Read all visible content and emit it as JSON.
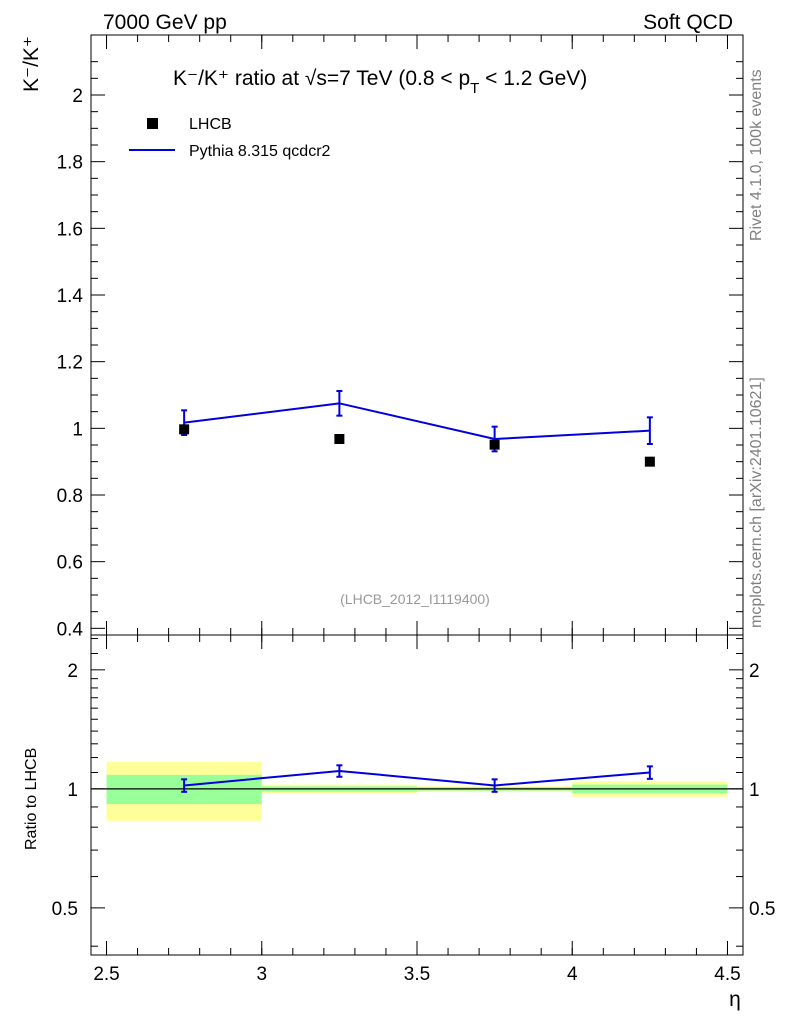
{
  "header": {
    "left": "7000 GeV pp",
    "right": "Soft QCD"
  },
  "side_text": {
    "rivet": "Rivet 4.1.0,  100k events",
    "mcplots": "mcplots.cern.ch [arXiv:2401.10621]"
  },
  "colors": {
    "mc": "#0000dd",
    "data": "#000000",
    "band_inner": "#99ff99",
    "band_outer": "#ffff99",
    "watermark": "#999999"
  },
  "chart_data": [
    {
      "type": "scatter",
      "panel": "main",
      "title": "K⁻/K⁺ ratio at √s=7 TeV (0.8 < p",
      "title_sub": "T",
      "title_end": " < 1.2 GeV)",
      "ylabel": "K⁻/K⁺",
      "xlabel": "η",
      "xlim": [
        2.45,
        4.55
      ],
      "ylim": [
        0.38,
        2.18
      ],
      "y_ticks": [
        0.4,
        0.6,
        0.8,
        1,
        1.2,
        1.4,
        1.6,
        1.8,
        2
      ],
      "y_tick_labels": [
        "0.4",
        "0.6",
        "0.8",
        "1",
        "1.2",
        "1.4",
        "1.6",
        "1.8",
        "2"
      ],
      "watermark": "(LHCB_2012_I1119400)",
      "legend": [
        {
          "label": "LHCB",
          "marker": "square"
        },
        {
          "label": "Pythia 8.315 qcdcr2",
          "marker": "line"
        }
      ],
      "series": [
        {
          "name": "LHCB",
          "x": [
            2.75,
            3.25,
            3.75,
            4.25
          ],
          "values": [
            0.997,
            0.968,
            0.951,
            0.9
          ]
        },
        {
          "name": "Pythia 8.315 qcdcr2",
          "x": [
            2.75,
            3.25,
            3.75,
            4.25
          ],
          "values": [
            1.017,
            1.075,
            0.968,
            0.993
          ],
          "errors": [
            0.037,
            0.037,
            0.037,
            0.04
          ]
        }
      ]
    },
    {
      "type": "line",
      "panel": "ratio",
      "ylabel": "Ratio to LHCB",
      "xlabel": "η",
      "xlim": [
        2.45,
        4.55
      ],
      "ylim": [
        0.38,
        2.45
      ],
      "y_ticks": [
        0.5,
        1,
        2
      ],
      "y_tick_labels": [
        "0.5",
        "1",
        "2"
      ],
      "x_ticks": [
        2.5,
        3,
        3.5,
        4,
        4.5
      ],
      "x_tick_labels": [
        "2.5",
        "3",
        "3.5",
        "4",
        "4.5"
      ],
      "bins": [
        [
          2.5,
          3.0
        ],
        [
          3.0,
          3.5
        ],
        [
          3.5,
          4.0
        ],
        [
          4.0,
          4.5
        ]
      ],
      "band_inner": [
        [
          0.915,
          1.085
        ],
        [
          0.985,
          1.015
        ],
        [
          0.99,
          1.01
        ],
        [
          0.975,
          1.025
        ]
      ],
      "band_outer": [
        [
          0.83,
          1.17
        ],
        [
          0.975,
          1.025
        ],
        [
          0.985,
          1.015
        ],
        [
          0.955,
          1.045
        ]
      ],
      "series": [
        {
          "name": "Pythia 8.315 qcdcr2",
          "x": [
            2.75,
            3.25,
            3.75,
            4.25
          ],
          "values": [
            1.02,
            1.11,
            1.02,
            1.1
          ],
          "errors": [
            0.037,
            0.037,
            0.037,
            0.04
          ]
        }
      ]
    }
  ]
}
